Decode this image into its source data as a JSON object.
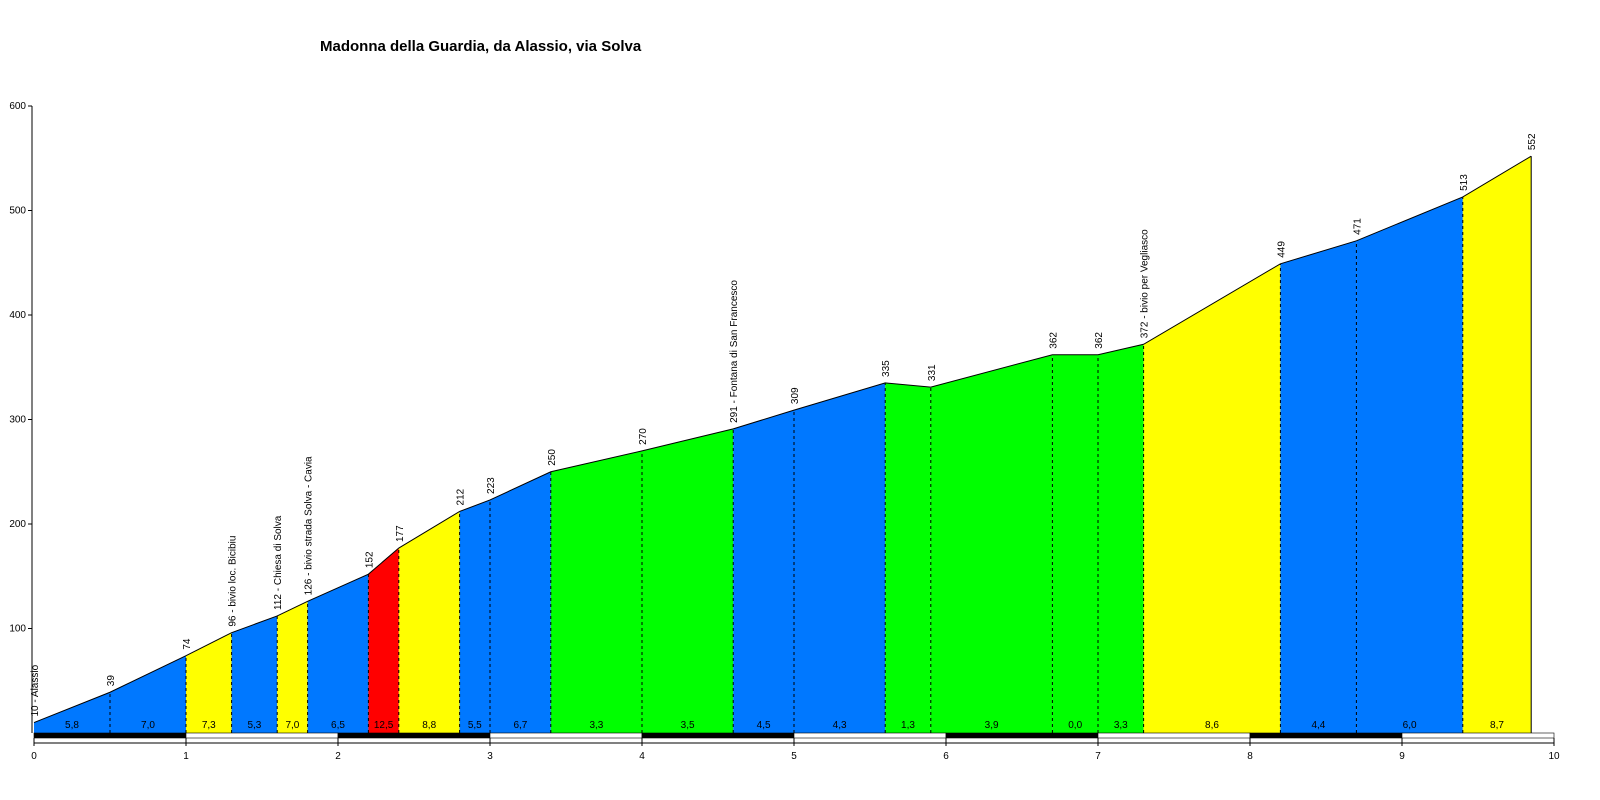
{
  "chart_data": {
    "type": "area",
    "title": "Madonna della Guardia, da Alassio, via Solva",
    "xlabel": "",
    "ylabel": "",
    "xlim": [
      0,
      10
    ],
    "ylim": [
      0,
      600
    ],
    "x_ticks": [
      "0",
      "1",
      "2",
      "3",
      "4",
      "5",
      "6",
      "7",
      "8",
      "9",
      "10"
    ],
    "y_ticks": [
      "100",
      "200",
      "300",
      "400",
      "500",
      "600"
    ],
    "grid": false,
    "legend": "none",
    "colors": {
      "gradient_0_5": "#0078FF",
      "gradient_5_8": "#FFFF00",
      "gradient_8_11": "#00FF00",
      "gradient_11_plus": "#FF0000",
      "outline": "#000000"
    },
    "points": [
      {
        "x": 0.0,
        "y": 10,
        "label": "10 - Alassio"
      },
      {
        "x": 0.5,
        "y": 39,
        "label": "39"
      },
      {
        "x": 1.0,
        "y": 74,
        "label": "74"
      },
      {
        "x": 1.3,
        "y": 96,
        "label": "96 - bivio loc. Bicibiu"
      },
      {
        "x": 1.6,
        "y": 112,
        "label": "112 - Chiesa di Solva"
      },
      {
        "x": 1.8,
        "y": 126,
        "label": "126 - bivio strada Solva - Cavia"
      },
      {
        "x": 2.2,
        "y": 152,
        "label": "152"
      },
      {
        "x": 2.4,
        "y": 177,
        "label": "177"
      },
      {
        "x": 2.8,
        "y": 212,
        "label": "212"
      },
      {
        "x": 3.0,
        "y": 223,
        "label": "223"
      },
      {
        "x": 3.4,
        "y": 250,
        "label": "250"
      },
      {
        "x": 4.0,
        "y": 270,
        "label": "270"
      },
      {
        "x": 4.6,
        "y": 291,
        "label": "291 - Fontana di San Francesco"
      },
      {
        "x": 5.0,
        "y": 309,
        "label": "309"
      },
      {
        "x": 5.6,
        "y": 335,
        "label": "335"
      },
      {
        "x": 5.9,
        "y": 331,
        "label": "331"
      },
      {
        "x": 6.7,
        "y": 362,
        "label": "362"
      },
      {
        "x": 7.0,
        "y": 362,
        "label": "362"
      },
      {
        "x": 7.3,
        "y": 372,
        "label": "372 - bivio per Vegliasco"
      },
      {
        "x": 8.2,
        "y": 449,
        "label": "449"
      },
      {
        "x": 8.7,
        "y": 471,
        "label": "471"
      },
      {
        "x": 9.4,
        "y": 513,
        "label": "513"
      },
      {
        "x": 9.85,
        "y": 552,
        "label": "552"
      }
    ],
    "segments": [
      {
        "gradient": "5,8",
        "color": "#0078FF"
      },
      {
        "gradient": "7,0",
        "color": "#0078FF"
      },
      {
        "gradient": "7,3",
        "color": "#FFFF00"
      },
      {
        "gradient": "5,3",
        "color": "#0078FF"
      },
      {
        "gradient": "7,0",
        "color": "#FFFF00"
      },
      {
        "gradient": "6,5",
        "color": "#0078FF"
      },
      {
        "gradient": "12,5",
        "color": "#FF0000"
      },
      {
        "gradient": "8,8",
        "color": "#FFFF00"
      },
      {
        "gradient": "5,5",
        "color": "#0078FF"
      },
      {
        "gradient": "6,7",
        "color": "#0078FF"
      },
      {
        "gradient": "3,3",
        "color": "#00FF00"
      },
      {
        "gradient": "3,5",
        "color": "#00FF00"
      },
      {
        "gradient": "4,5",
        "color": "#0078FF"
      },
      {
        "gradient": "4,3",
        "color": "#0078FF"
      },
      {
        "gradient": "1,3",
        "color": "#00FF00"
      },
      {
        "gradient": "3,9",
        "color": "#00FF00"
      },
      {
        "gradient": "0,0",
        "color": "#00FF00"
      },
      {
        "gradient": "3,3",
        "color": "#00FF00"
      },
      {
        "gradient": "8,6",
        "color": "#FFFF00"
      },
      {
        "gradient": "4,4",
        "color": "#0078FF"
      },
      {
        "gradient": "6,0",
        "color": "#0078FF"
      },
      {
        "gradient": "8,7",
        "color": "#FFFF00"
      }
    ]
  }
}
